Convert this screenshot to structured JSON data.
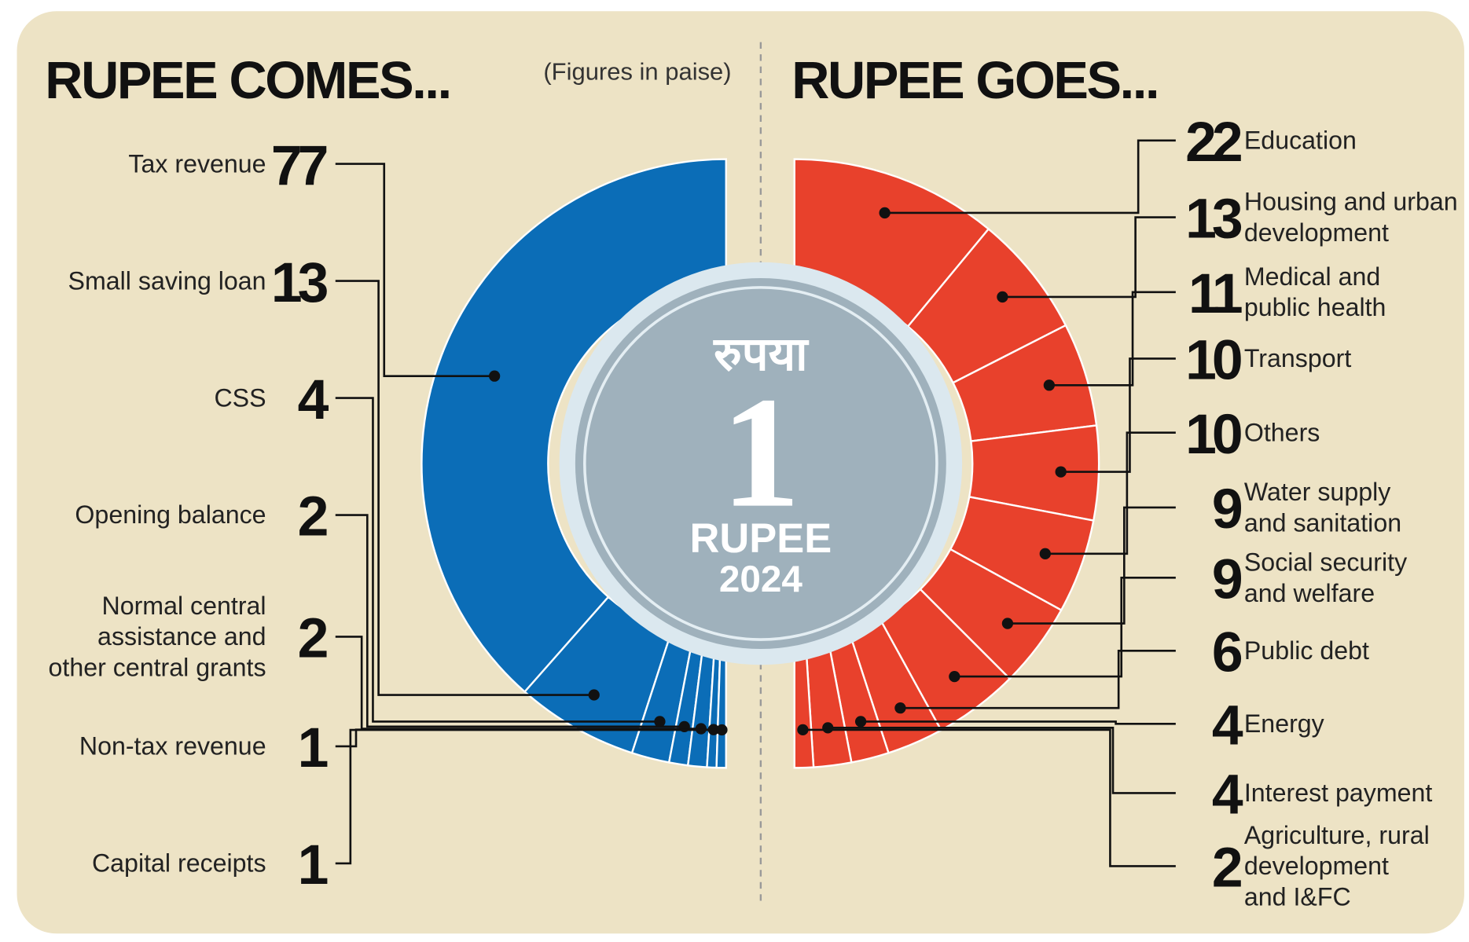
{
  "note": "(Figures in paise)",
  "coin": {
    "script": "रुपया",
    "denomination": "1",
    "label": "RUPEE",
    "year": "2024"
  },
  "chart_data": [
    {
      "type": "pie",
      "title": "RUPEE COMES...",
      "color": "#0b6db7",
      "categories": [
        "Tax revenue",
        "Small saving loan",
        "CSS",
        "Opening balance",
        "Normal central\nassistance and\nother central grants",
        "Non-tax revenue",
        "Capital receipts"
      ],
      "values": [
        77,
        13,
        4,
        2,
        2,
        1,
        1
      ]
    },
    {
      "type": "pie",
      "title": "RUPEE GOES...",
      "color": "#e8412c",
      "categories": [
        "Education",
        "Housing and urban\ndevelopment",
        "Medical and\npublic health",
        "Transport",
        "Others",
        "Water supply\nand sanitation",
        "Social security\nand welfare",
        "Public debt",
        "Energy",
        "Interest payment",
        "Agriculture, rural\ndevelopment\nand I&FC"
      ],
      "values": [
        22,
        13,
        11,
        10,
        10,
        9,
        9,
        6,
        4,
        4,
        2
      ]
    }
  ]
}
